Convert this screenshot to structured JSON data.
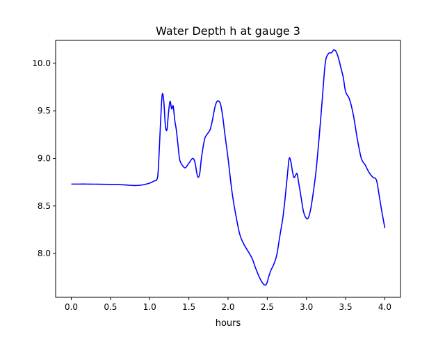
{
  "chart_data": {
    "type": "line",
    "title": "Water Depth h at gauge 3",
    "xlabel": "hours",
    "ylabel": "",
    "xlim": [
      -0.2,
      4.2
    ],
    "ylim": [
      7.54,
      10.24
    ],
    "xticks": [
      0.0,
      0.5,
      1.0,
      1.5,
      2.0,
      2.5,
      3.0,
      3.5,
      4.0
    ],
    "xtick_labels": [
      "0.0",
      "0.5",
      "1.0",
      "1.5",
      "2.0",
      "2.5",
      "3.0",
      "3.5",
      "4.0"
    ],
    "yticks": [
      8.0,
      8.5,
      9.0,
      9.5,
      10.0
    ],
    "ytick_labels": [
      "8.0",
      "8.5",
      "9.0",
      "9.5",
      "10.0"
    ],
    "grid": false,
    "line_color": "#0000ff",
    "series": [
      {
        "x": [
          0.0,
          0.1,
          0.2,
          0.3,
          0.4,
          0.5,
          0.6,
          0.7,
          0.8,
          0.9,
          1.0,
          1.05,
          1.1,
          1.12,
          1.14,
          1.16,
          1.18,
          1.2,
          1.22,
          1.24,
          1.26,
          1.28,
          1.3,
          1.32,
          1.34,
          1.36,
          1.38,
          1.4,
          1.45,
          1.5,
          1.55,
          1.58,
          1.6,
          1.62,
          1.64,
          1.66,
          1.7,
          1.73,
          1.77,
          1.8,
          1.83,
          1.86,
          1.9,
          1.93,
          1.96,
          2.0,
          2.05,
          2.1,
          2.15,
          2.2,
          2.3,
          2.35,
          2.4,
          2.45,
          2.48,
          2.5,
          2.52,
          2.55,
          2.58,
          2.62,
          2.66,
          2.7,
          2.73,
          2.76,
          2.78,
          2.8,
          2.82,
          2.84,
          2.86,
          2.88,
          2.9,
          2.93,
          2.96,
          2.99,
          3.02,
          3.05,
          3.08,
          3.12,
          3.16,
          3.2,
          3.24,
          3.28,
          3.32,
          3.35,
          3.38,
          3.41,
          3.44,
          3.47,
          3.5,
          3.55,
          3.6,
          3.65,
          3.7,
          3.75,
          3.8,
          3.85,
          3.88,
          3.9,
          3.93,
          3.96,
          4.0
        ],
        "y": [
          8.73,
          8.73,
          8.73,
          8.729,
          8.728,
          8.727,
          8.725,
          8.72,
          8.715,
          8.72,
          8.74,
          8.76,
          8.8,
          9.05,
          9.4,
          9.67,
          9.6,
          9.35,
          9.3,
          9.48,
          9.6,
          9.52,
          9.55,
          9.4,
          9.3,
          9.15,
          9.0,
          8.95,
          8.9,
          8.95,
          9.0,
          8.95,
          8.85,
          8.8,
          8.85,
          9.0,
          9.2,
          9.25,
          9.3,
          9.4,
          9.53,
          9.6,
          9.58,
          9.45,
          9.25,
          9.0,
          8.65,
          8.4,
          8.2,
          8.1,
          7.96,
          7.85,
          7.75,
          7.68,
          7.67,
          7.7,
          7.76,
          7.83,
          7.88,
          7.98,
          8.18,
          8.38,
          8.6,
          8.85,
          9.0,
          8.97,
          8.87,
          8.8,
          8.82,
          8.84,
          8.75,
          8.6,
          8.45,
          8.38,
          8.37,
          8.45,
          8.6,
          8.85,
          9.2,
          9.6,
          10.0,
          10.1,
          10.11,
          10.14,
          10.12,
          10.05,
          9.95,
          9.85,
          9.7,
          9.62,
          9.45,
          9.2,
          9.0,
          8.93,
          8.85,
          8.8,
          8.79,
          8.75,
          8.6,
          8.45,
          8.27
        ]
      }
    ]
  }
}
